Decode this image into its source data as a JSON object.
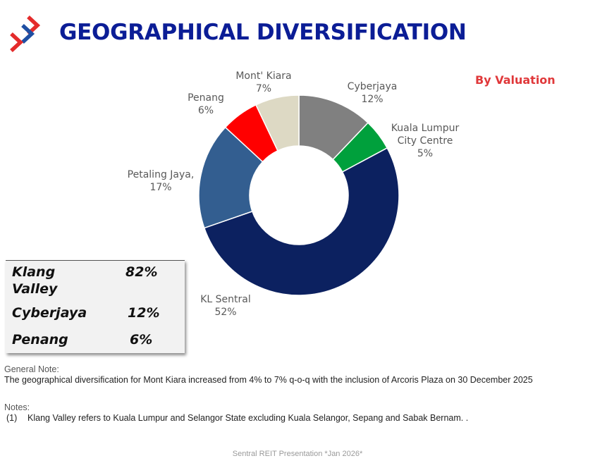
{
  "header": {
    "title": "GEOGRAPHICAL DIVERSIFICATION",
    "subtitle": "By Valuation",
    "logo_colors": [
      "#e42b2b",
      "#1f4fa3"
    ]
  },
  "chart_data": {
    "type": "pie",
    "variant": "donut",
    "slices": [
      {
        "name": "Cyberjaya",
        "label_lines": [
          "Cyberjaya"
        ],
        "value": 12,
        "value_label": "12%",
        "color": "#808080"
      },
      {
        "name": "Kuala Lumpur City Centre",
        "label_lines": [
          "Kuala Lumpur",
          "City Centre"
        ],
        "value": 5,
        "value_label": "5%",
        "color": "#00a03c"
      },
      {
        "name": "KL Sentral",
        "label_lines": [
          "KL Sentral"
        ],
        "value": 52,
        "value_label": "52%",
        "color": "#0c2160"
      },
      {
        "name": "Petaling Jaya,",
        "label_lines": [
          "Petaling Jaya,"
        ],
        "value": 17,
        "value_label": "17%",
        "color": "#335e90"
      },
      {
        "name": "Penang",
        "label_lines": [
          "Penang"
        ],
        "value": 6,
        "value_label": "6%",
        "color": "#ff0000"
      },
      {
        "name": "Mont' Kiara",
        "label_lines": [
          "Mont' Kiara"
        ],
        "value": 7,
        "value_label": "7%",
        "color": "#ddd9c4"
      }
    ]
  },
  "summary": [
    {
      "name": "Klang Valley",
      "pct": "82%"
    },
    {
      "name": "Cyberjaya",
      "pct": "12%"
    },
    {
      "name": "Penang",
      "pct": "6%"
    }
  ],
  "notes": {
    "general_heading": "General Note:",
    "general_text": "The geographical diversification for Mont Kiara increased from 4% to 7% q-o-q with the inclusion of Arcoris Plaza on 30 December 2025",
    "notes_heading": "Notes:",
    "note_1_marker": "(1)",
    "note_1_text": "Klang Valley refers to Kuala Lumpur and Selangor State excluding Kuala Selangor, Sepang and Sabak Bernam. ."
  },
  "footer": "Sentral REIT Presentation *Jan 2026*"
}
